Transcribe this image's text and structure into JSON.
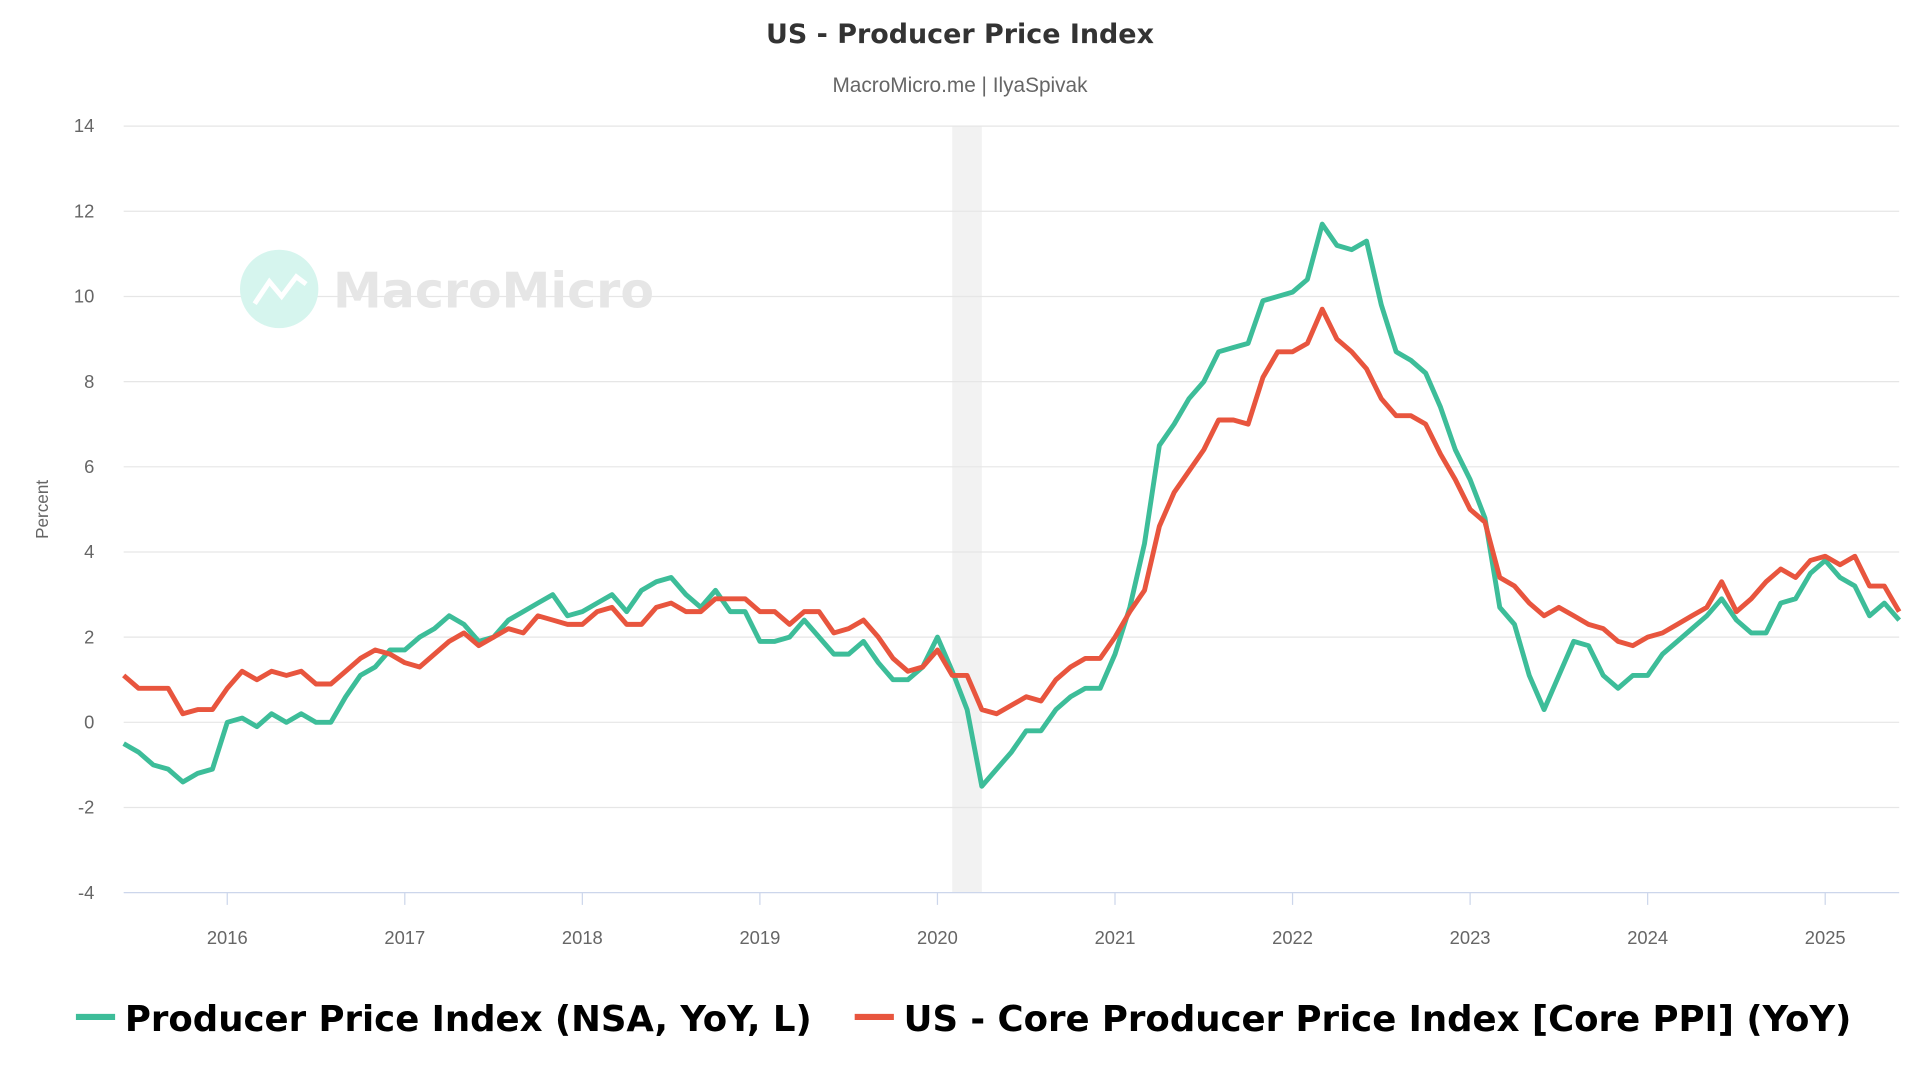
{
  "chart_data": {
    "type": "line",
    "title": "US - Producer Price Index",
    "subtitle": "MacroMicro.me | IlyaSpivak",
    "watermark": "MacroMicro",
    "ylabel": "Percent",
    "xlabel": "",
    "ylim": [
      -4,
      14
    ],
    "yticks": [
      "-4",
      "-2",
      "0",
      "2",
      "4",
      "6",
      "8",
      "10",
      "12",
      "14"
    ],
    "xticks": [
      "2016",
      "2017",
      "2018",
      "2019",
      "2020",
      "2021",
      "2022",
      "2023",
      "2024",
      "2025"
    ],
    "grid": true,
    "legend_position": "bottom",
    "shaded_period": {
      "from": "2020-02",
      "to": "2020-04",
      "color": "#f2f2f2"
    },
    "x": [
      "2015-06",
      "2015-07",
      "2015-08",
      "2015-09",
      "2015-10",
      "2015-11",
      "2015-12",
      "2016-01",
      "2016-02",
      "2016-03",
      "2016-04",
      "2016-05",
      "2016-06",
      "2016-07",
      "2016-08",
      "2016-09",
      "2016-10",
      "2016-11",
      "2016-12",
      "2017-01",
      "2017-02",
      "2017-03",
      "2017-04",
      "2017-05",
      "2017-06",
      "2017-07",
      "2017-08",
      "2017-09",
      "2017-10",
      "2017-11",
      "2017-12",
      "2018-01",
      "2018-02",
      "2018-03",
      "2018-04",
      "2018-05",
      "2018-06",
      "2018-07",
      "2018-08",
      "2018-09",
      "2018-10",
      "2018-11",
      "2018-12",
      "2019-01",
      "2019-02",
      "2019-03",
      "2019-04",
      "2019-05",
      "2019-06",
      "2019-07",
      "2019-08",
      "2019-09",
      "2019-10",
      "2019-11",
      "2019-12",
      "2020-01",
      "2020-02",
      "2020-03",
      "2020-04",
      "2020-05",
      "2020-06",
      "2020-07",
      "2020-08",
      "2020-09",
      "2020-10",
      "2020-11",
      "2020-12",
      "2021-01",
      "2021-02",
      "2021-03",
      "2021-04",
      "2021-05",
      "2021-06",
      "2021-07",
      "2021-08",
      "2021-09",
      "2021-10",
      "2021-11",
      "2021-12",
      "2022-01",
      "2022-02",
      "2022-03",
      "2022-04",
      "2022-05",
      "2022-06",
      "2022-07",
      "2022-08",
      "2022-09",
      "2022-10",
      "2022-11",
      "2022-12",
      "2023-01",
      "2023-02",
      "2023-03",
      "2023-04",
      "2023-05",
      "2023-06",
      "2023-07",
      "2023-08",
      "2023-09",
      "2023-10",
      "2023-11",
      "2023-12",
      "2024-01",
      "2024-02",
      "2024-03",
      "2024-04",
      "2024-05",
      "2024-06",
      "2024-07",
      "2024-08",
      "2024-09",
      "2024-10",
      "2024-11",
      "2024-12",
      "2025-01",
      "2025-02",
      "2025-03",
      "2025-04",
      "2025-05",
      "2025-06"
    ],
    "series": [
      {
        "name": "Producer Price Index (NSA, YoY, L)",
        "color": "#3dbd99",
        "values": [
          -0.5,
          -0.7,
          -1.0,
          -1.1,
          -1.4,
          -1.2,
          -1.1,
          0.0,
          0.1,
          -0.1,
          0.2,
          0.0,
          0.2,
          0.0,
          0.0,
          0.6,
          1.1,
          1.3,
          1.7,
          1.7,
          2.0,
          2.2,
          2.5,
          2.3,
          1.9,
          2.0,
          2.4,
          2.6,
          2.8,
          3.0,
          2.5,
          2.6,
          2.8,
          3.0,
          2.6,
          3.1,
          3.3,
          3.4,
          3.0,
          2.7,
          3.1,
          2.6,
          2.6,
          1.9,
          1.9,
          2.0,
          2.4,
          2.0,
          1.6,
          1.6,
          1.9,
          1.4,
          1.0,
          1.0,
          1.3,
          2.0,
          1.2,
          0.3,
          -1.5,
          -1.1,
          -0.7,
          -0.2,
          -0.2,
          0.3,
          0.6,
          0.8,
          0.8,
          1.6,
          2.7,
          4.2,
          6.5,
          7.0,
          7.6,
          8.0,
          8.7,
          8.8,
          8.9,
          9.9,
          10.0,
          10.1,
          10.4,
          11.7,
          11.2,
          11.1,
          11.3,
          9.8,
          8.7,
          8.5,
          8.2,
          7.4,
          6.4,
          5.7,
          4.8,
          2.7,
          2.3,
          1.1,
          0.3,
          1.1,
          1.9,
          1.8,
          1.1,
          0.8,
          1.1,
          1.1,
          1.6,
          1.9,
          2.2,
          2.5,
          2.9,
          2.4,
          2.1,
          2.1,
          2.8,
          2.9,
          3.5,
          3.8,
          3.4,
          3.2,
          2.5,
          2.8,
          2.4
        ]
      },
      {
        "name": "US - Core Producer Price Index [Core PPI] (YoY)",
        "color": "#e8553e",
        "values": [
          1.1,
          0.8,
          0.8,
          0.8,
          0.2,
          0.3,
          0.3,
          0.8,
          1.2,
          1.0,
          1.2,
          1.1,
          1.2,
          0.9,
          0.9,
          1.2,
          1.5,
          1.7,
          1.6,
          1.4,
          1.3,
          1.6,
          1.9,
          2.1,
          1.8,
          2.0,
          2.2,
          2.1,
          2.5,
          2.4,
          2.3,
          2.3,
          2.6,
          2.7,
          2.3,
          2.3,
          2.7,
          2.8,
          2.6,
          2.6,
          2.9,
          2.9,
          2.9,
          2.6,
          2.6,
          2.3,
          2.6,
          2.6,
          2.1,
          2.2,
          2.4,
          2.0,
          1.5,
          1.2,
          1.3,
          1.7,
          1.1,
          1.1,
          0.3,
          0.2,
          0.4,
          0.6,
          0.5,
          1.0,
          1.3,
          1.5,
          1.5,
          2.0,
          2.6,
          3.1,
          4.6,
          5.4,
          5.9,
          6.4,
          7.1,
          7.1,
          7.0,
          8.1,
          8.7,
          8.7,
          8.9,
          9.7,
          9.0,
          8.7,
          8.3,
          7.6,
          7.2,
          7.2,
          7.0,
          6.3,
          5.7,
          5.0,
          4.7,
          3.4,
          3.2,
          2.8,
          2.5,
          2.7,
          2.5,
          2.3,
          2.2,
          1.9,
          1.8,
          2.0,
          2.1,
          2.3,
          2.5,
          2.7,
          3.3,
          2.6,
          2.9,
          3.3,
          3.6,
          3.4,
          3.8,
          3.9,
          3.7,
          3.9,
          3.2,
          3.2,
          2.6
        ]
      }
    ]
  }
}
